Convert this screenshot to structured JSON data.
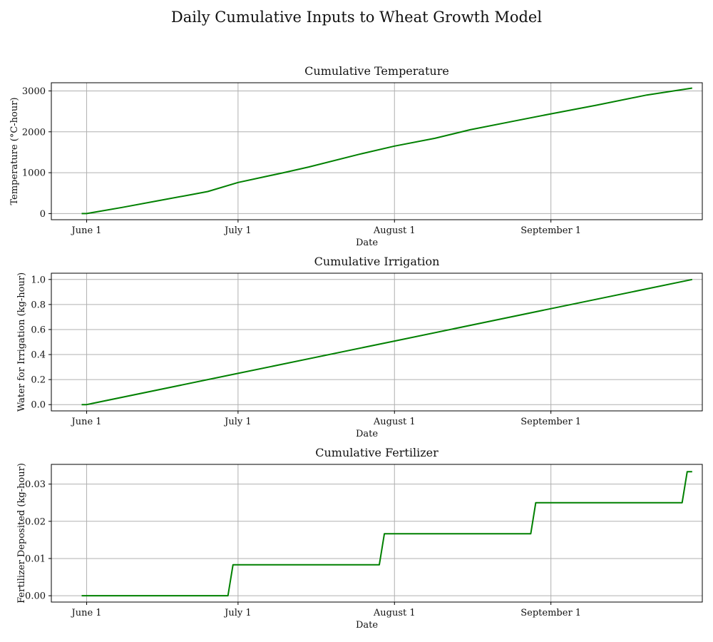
{
  "figure": {
    "title": "Daily Cumulative Inputs to Wheat Growth Model",
    "line_color": "#008000",
    "grid_color": "#b0b0b0"
  },
  "chart_data": [
    {
      "type": "line",
      "title": "Cumulative Temperature",
      "xlabel": "Date",
      "ylabel": "Temperature (°C-hour)",
      "x_ticks": [
        "2023-06-01",
        "2023-07-01",
        "2023-08-01",
        "2023-09-01"
      ],
      "x_tick_labels": [
        "June 1",
        "July 1",
        "August 1",
        "September 1"
      ],
      "xlim": [
        "2023-05-25",
        "2023-10-01"
      ],
      "ylim": [
        -150,
        3200
      ],
      "y_ticks": [
        0,
        1000,
        2000,
        3000
      ],
      "y_tick_labels": [
        "0",
        "1000",
        "2000",
        "3000"
      ],
      "grid": true,
      "series": [
        {
          "points": [
            [
              "2023-05-31",
              0
            ],
            [
              "2023-06-01",
              0
            ],
            [
              "2023-06-08",
              150
            ],
            [
              "2023-06-15",
              310
            ],
            [
              "2023-06-22",
              470
            ],
            [
              "2023-06-25",
              540
            ],
            [
              "2023-07-01",
              760
            ],
            [
              "2023-07-10",
              1000
            ],
            [
              "2023-07-15",
              1140
            ],
            [
              "2023-07-25",
              1450
            ],
            [
              "2023-08-01",
              1650
            ],
            [
              "2023-08-09",
              1840
            ],
            [
              "2023-08-16",
              2050
            ],
            [
              "2023-08-25",
              2270
            ],
            [
              "2023-09-01",
              2440
            ],
            [
              "2023-09-10",
              2650
            ],
            [
              "2023-09-20",
              2900
            ],
            [
              "2023-09-29",
              3070
            ]
          ]
        }
      ]
    },
    {
      "type": "line",
      "title": "Cumulative Irrigation",
      "xlabel": "Date",
      "ylabel": "Water for Irrigation (kg-hour)",
      "x_ticks": [
        "2023-06-01",
        "2023-07-01",
        "2023-08-01",
        "2023-09-01"
      ],
      "x_tick_labels": [
        "June 1",
        "July 1",
        "August 1",
        "September 1"
      ],
      "xlim": [
        "2023-05-25",
        "2023-10-01"
      ],
      "ylim": [
        -0.05,
        1.05
      ],
      "y_ticks": [
        0.0,
        0.2,
        0.4,
        0.6,
        0.8,
        1.0
      ],
      "y_tick_labels": [
        "0.0",
        "0.2",
        "0.4",
        "0.6",
        "0.8",
        "1.0"
      ],
      "grid": true,
      "series": [
        {
          "points": [
            [
              "2023-05-31",
              0
            ],
            [
              "2023-06-01",
              0
            ],
            [
              "2023-07-01",
              0.25
            ],
            [
              "2023-08-01",
              0.508
            ],
            [
              "2023-09-01",
              0.767
            ],
            [
              "2023-09-29",
              1.0
            ]
          ]
        }
      ]
    },
    {
      "type": "line",
      "title": "Cumulative Fertilizer",
      "xlabel": "Date",
      "ylabel": "Fertilizer Deposited (kg-hour)",
      "x_ticks": [
        "2023-06-01",
        "2023-07-01",
        "2023-08-01",
        "2023-09-01"
      ],
      "x_tick_labels": [
        "June 1",
        "July 1",
        "August 1",
        "September 1"
      ],
      "xlim": [
        "2023-05-25",
        "2023-10-01"
      ],
      "ylim": [
        -0.0017,
        0.0353
      ],
      "y_ticks": [
        0.0,
        0.01,
        0.02,
        0.03
      ],
      "y_tick_labels": [
        "0.00",
        "0.01",
        "0.02",
        "0.03"
      ],
      "grid": true,
      "series": [
        {
          "points": [
            [
              "2023-05-31",
              0
            ],
            [
              "2023-06-29",
              0
            ],
            [
              "2023-06-30",
              0.00833
            ],
            [
              "2023-07-29",
              0.00833
            ],
            [
              "2023-07-30",
              0.01667
            ],
            [
              "2023-08-28",
              0.01667
            ],
            [
              "2023-08-29",
              0.025
            ],
            [
              "2023-09-27",
              0.025
            ],
            [
              "2023-09-28",
              0.03333
            ],
            [
              "2023-09-29",
              0.03333
            ]
          ]
        }
      ]
    }
  ]
}
